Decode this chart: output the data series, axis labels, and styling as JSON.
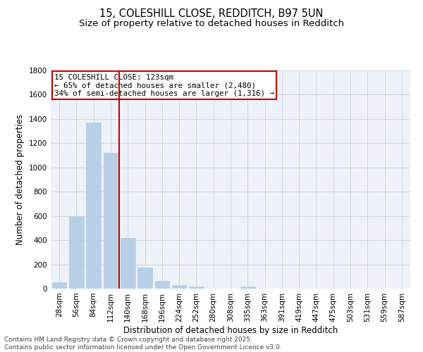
{
  "title_line1": "15, COLESHILL CLOSE, REDDITCH, B97 5UN",
  "title_line2": "Size of property relative to detached houses in Redditch",
  "xlabel": "Distribution of detached houses by size in Redditch",
  "ylabel": "Number of detached properties",
  "categories": [
    "28sqm",
    "56sqm",
    "84sqm",
    "112sqm",
    "140sqm",
    "168sqm",
    "196sqm",
    "224sqm",
    "252sqm",
    "280sqm",
    "308sqm",
    "335sqm",
    "363sqm",
    "391sqm",
    "419sqm",
    "447sqm",
    "475sqm",
    "503sqm",
    "531sqm",
    "559sqm",
    "587sqm"
  ],
  "values": [
    50,
    600,
    1370,
    1120,
    420,
    175,
    65,
    30,
    18,
    0,
    0,
    18,
    0,
    0,
    0,
    0,
    0,
    0,
    0,
    0,
    0
  ],
  "bar_color": "#b8cfe8",
  "bar_edge_color": "#b8cfe8",
  "grid_color": "#ccd8e8",
  "vline_color": "#cc0000",
  "vline_pos": 3.5,
  "box_text_line1": "15 COLESHILL CLOSE: 123sqm",
  "box_text_line2": "← 65% of detached houses are smaller (2,480)",
  "box_text_line3": "34% of semi-detached houses are larger (1,316) →",
  "box_color": "#cc0000",
  "box_fill": "white",
  "ylim": [
    0,
    1800
  ],
  "yticks": [
    0,
    200,
    400,
    600,
    800,
    1000,
    1200,
    1400,
    1600,
    1800
  ],
  "footer_line1": "Contains HM Land Registry data © Crown copyright and database right 2025.",
  "footer_line2": "Contains public sector information licensed under the Open Government Licence v3.0.",
  "title_fontsize": 10.5,
  "subtitle_fontsize": 9.5,
  "axis_label_fontsize": 8.5,
  "tick_fontsize": 7.5,
  "annotation_fontsize": 7.8,
  "footer_fontsize": 6.5,
  "bg_color": "#eef2f8"
}
